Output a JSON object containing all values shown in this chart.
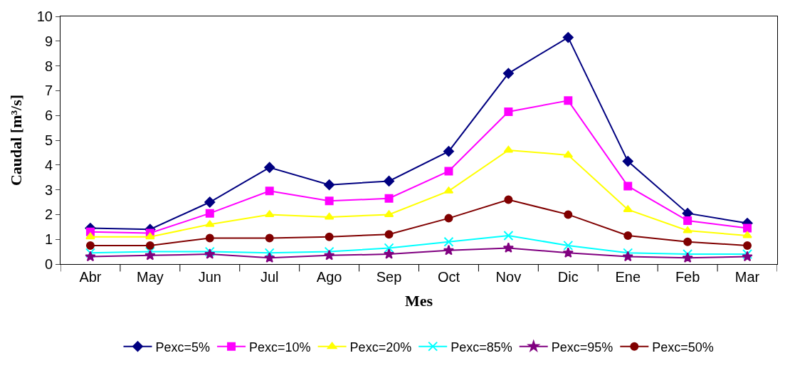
{
  "chart_data": {
    "type": "line",
    "xlabel": "Mes",
    "ylabel": "Caudal [m³/s]",
    "categories": [
      "Abr",
      "May",
      "Jun",
      "Jul",
      "Ago",
      "Sep",
      "Oct",
      "Nov",
      "Dic",
      "Ene",
      "Feb",
      "Mar"
    ],
    "ylim": [
      0,
      10
    ],
    "yticks": [
      0,
      1,
      2,
      3,
      4,
      5,
      6,
      7,
      8,
      9,
      10
    ],
    "grid": false,
    "legend": "bottom",
    "line_style": "solid",
    "series": [
      {
        "name": "Pexc=5%",
        "color": "#000080",
        "marker": "diamond",
        "values": [
          1.45,
          1.4,
          2.5,
          3.9,
          3.2,
          3.35,
          4.55,
          7.7,
          9.15,
          4.15,
          2.05,
          1.65
        ]
      },
      {
        "name": "Pexc=10%",
        "color": "#ff00ff",
        "marker": "square",
        "values": [
          1.3,
          1.25,
          2.05,
          2.95,
          2.55,
          2.65,
          3.75,
          6.15,
          6.6,
          3.15,
          1.75,
          1.45
        ]
      },
      {
        "name": "Pexc=20%",
        "color": "#ffff00",
        "marker": "triangle",
        "values": [
          1.1,
          1.1,
          1.6,
          2.0,
          1.9,
          2.0,
          2.95,
          4.6,
          4.4,
          2.2,
          1.35,
          1.15
        ]
      },
      {
        "name": "Pexc=85%",
        "color": "#00ffff",
        "marker": "cross",
        "values": [
          0.45,
          0.5,
          0.5,
          0.45,
          0.5,
          0.65,
          0.9,
          1.15,
          0.75,
          0.45,
          0.4,
          0.4
        ]
      },
      {
        "name": "Pexc=95%",
        "color": "#800080",
        "marker": "star",
        "values": [
          0.3,
          0.35,
          0.4,
          0.25,
          0.35,
          0.4,
          0.55,
          0.65,
          0.45,
          0.3,
          0.25,
          0.3
        ]
      },
      {
        "name": "Pexc=50%",
        "color": "#800000",
        "marker": "circle",
        "values": [
          0.75,
          0.75,
          1.05,
          1.05,
          1.1,
          1.2,
          1.85,
          2.6,
          2.0,
          1.15,
          0.9,
          0.75
        ]
      }
    ]
  }
}
